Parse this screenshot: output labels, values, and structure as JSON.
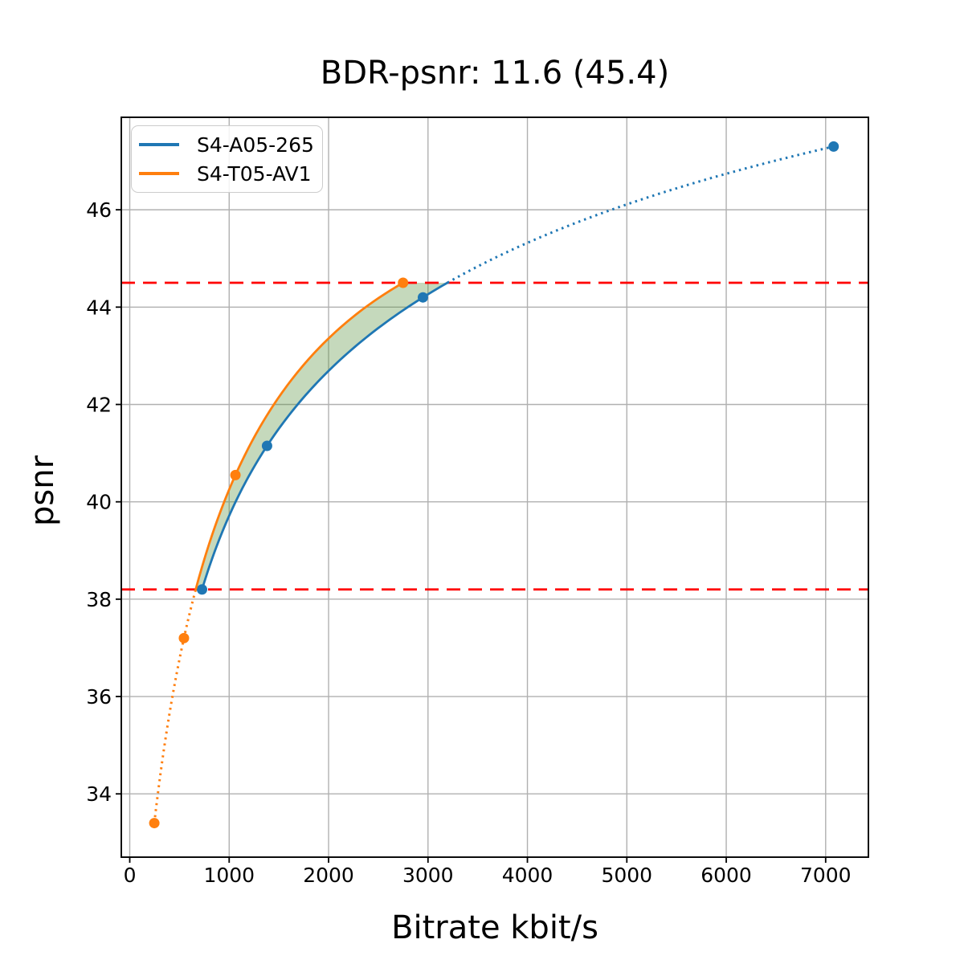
{
  "figure": {
    "background": "#ffffff"
  },
  "chart_data": {
    "type": "line",
    "title": "BDR-psnr: 11.6 (45.4)",
    "xlabel": "Bitrate kbit/s",
    "ylabel": "psnr",
    "xlim": [
      -85,
      7430
    ],
    "ylim": [
      32.7,
      47.9
    ],
    "x_ticks": [
      0,
      1000,
      2000,
      3000,
      4000,
      5000,
      6000,
      7000
    ],
    "y_ticks": [
      34,
      36,
      38,
      40,
      42,
      44,
      46
    ],
    "grid": true,
    "grid_color": "#b0b0b0",
    "legend_position": "upper-left",
    "curve_fit": "cubic-in-log10-bitrate",
    "series": [
      {
        "name": "S4-A05-265",
        "color": "#1f77b4",
        "marker": "circle",
        "x": [
          727,
          1381,
          2949,
          7080
        ],
        "y": [
          38.2,
          41.15,
          44.2,
          47.3
        ]
      },
      {
        "name": "S4-T05-AV1",
        "color": "#ff7f0e",
        "marker": "circle",
        "x": [
          247,
          545,
          1063,
          2749
        ],
        "y": [
          33.4,
          37.2,
          40.55,
          44.5
        ]
      }
    ],
    "overlap": {
      "y_low": 38.2,
      "y_high": 44.5,
      "line_color": "#ff0000",
      "line_style": "dashed"
    },
    "shaded_region": {
      "color": "#5a913e",
      "opacity": 0.35
    }
  }
}
